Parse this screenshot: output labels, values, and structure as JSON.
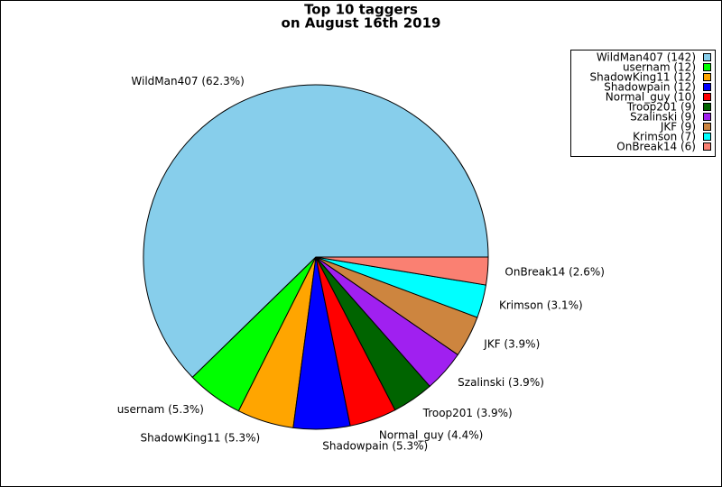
{
  "chart_data": {
    "type": "pie",
    "title": "Top 10 taggers",
    "subtitle": "on August 16th 2019",
    "categories": [
      "WildMan407 (142)",
      "usernam (12)",
      "ShadowKing11 (12)",
      "Shadowpain (12)",
      "Normal_guy (10)",
      "Troop201 (9)",
      "Szalinski (9)",
      "JKF (9)",
      "Krimson (7)",
      "OnBreak14 (6)"
    ],
    "values": [
      62.3,
      5.3,
      5.3,
      5.3,
      4.4,
      3.9,
      3.9,
      3.9,
      3.1,
      2.6
    ],
    "value_labels": [
      "WildMan407 (62.3%)",
      "usernam (5.3%)",
      "ShadowKing11 (5.3%)",
      "Shadowpain (5.3%)",
      "Normal_guy (4.4%)",
      "Troop201 (3.9%)",
      "Szalinski (3.9%)",
      "JKF (3.9%)",
      "Krimson (3.1%)",
      "OnBreak14 (2.6%)"
    ],
    "colors": [
      "#87ceeb",
      "#00ff00",
      "#ffa500",
      "#0000ff",
      "#ff0000",
      "#006400",
      "#a020f0",
      "#cd853f",
      "#00ffff",
      "#fa8072"
    ],
    "legend": "upper right"
  }
}
